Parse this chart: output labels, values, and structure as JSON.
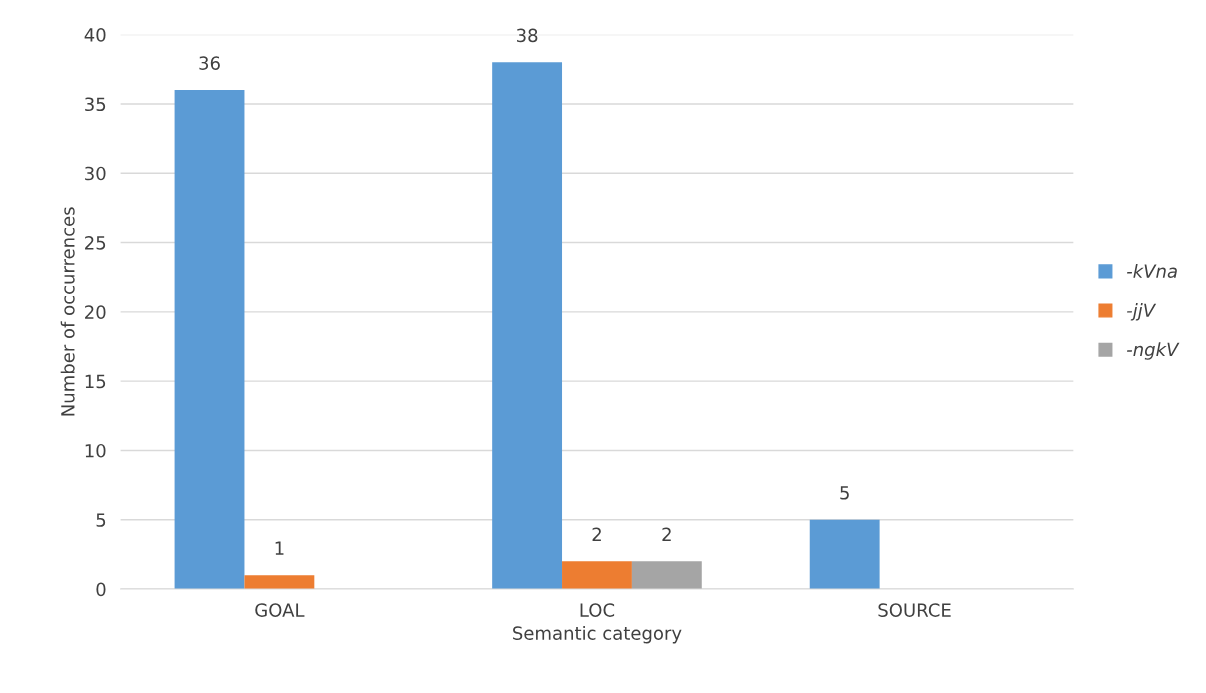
{
  "chart_data": {
    "type": "bar",
    "xlabel": "Semantic category",
    "ylabel": "Number of occurrences",
    "categories": [
      "GOAL",
      "LOC",
      "SOURCE"
    ],
    "series": [
      {
        "name": "-kVna",
        "color": "#5b9bd5",
        "values": [
          36,
          38,
          5
        ]
      },
      {
        "name": "-jjV",
        "color": "#ed7d31",
        "values": [
          1,
          2,
          null
        ]
      },
      {
        "name": "-ngkV",
        "color": "#a5a5a5",
        "values": [
          null,
          2,
          null
        ]
      }
    ],
    "ylim": [
      0,
      40
    ],
    "yticks": [
      0,
      5,
      10,
      15,
      20,
      25,
      30,
      35,
      40
    ],
    "grid": "y",
    "legend": "right",
    "data_labels": true
  }
}
